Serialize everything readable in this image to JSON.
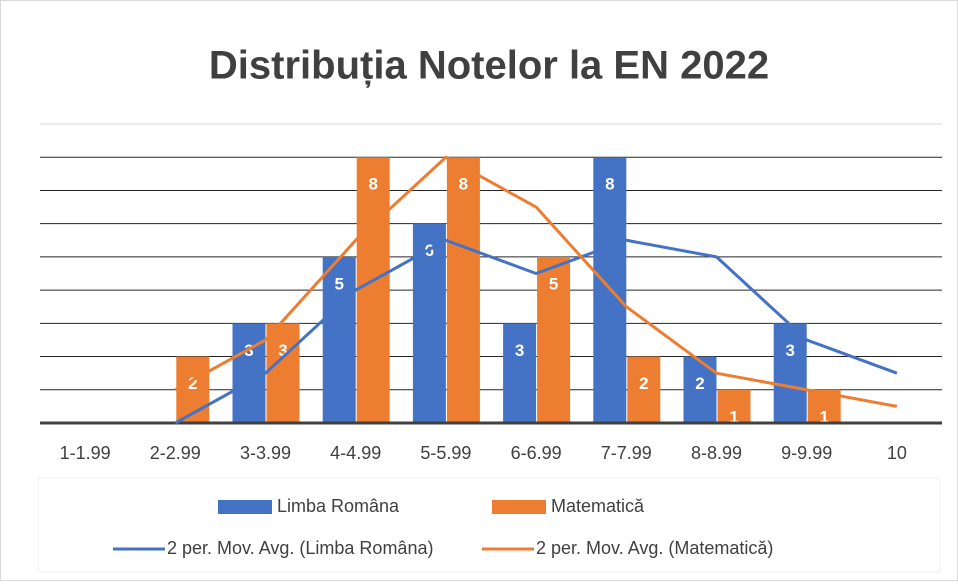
{
  "chart_data": {
    "type": "bar",
    "title": "Distribuția Notelor la EN 2022",
    "categories": [
      "1-1.99",
      "2-2.99",
      "3-3.99",
      "4-4.99",
      "5-5.99",
      "6-6.99",
      "7-7.99",
      "8-8.99",
      "9-9.99",
      "10"
    ],
    "series": [
      {
        "name": "Limba Româna",
        "color": "#4472c4",
        "values": [
          0,
          0,
          3,
          5,
          6,
          3,
          8,
          2,
          3,
          0
        ]
      },
      {
        "name": "Matematică",
        "color": "#ed7d31",
        "values": [
          0,
          2,
          3,
          8,
          8,
          5,
          2,
          1,
          1,
          0
        ]
      }
    ],
    "trendlines": [
      {
        "name": "2 per. Mov. Avg. (Limba Româna)",
        "color": "#4472c4",
        "values": [
          null,
          0,
          1.5,
          4,
          5.5,
          4.5,
          5.5,
          5,
          2.5,
          1.5
        ]
      },
      {
        "name": "2 per. Mov. Avg. (Matematică)",
        "color": "#ed7d31",
        "values": [
          null,
          1,
          2.5,
          5.5,
          8,
          6.5,
          3.5,
          1.5,
          1,
          0.5
        ]
      }
    ],
    "ylim": [
      0,
      9
    ],
    "yticks": [
      0,
      1,
      2,
      3,
      4,
      5,
      6,
      7,
      8,
      9
    ],
    "grid": true,
    "legend": "bottom"
  }
}
